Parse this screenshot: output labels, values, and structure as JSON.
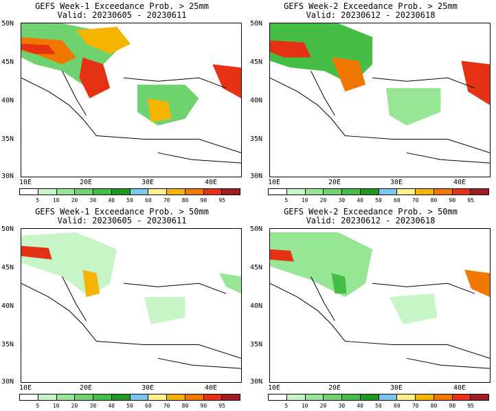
{
  "panels": [
    {
      "line1": "GEFS Week-1 Exceedance Prob. > 25mm",
      "line2": "Valid: 20230605 - 20230611"
    },
    {
      "line1": "GEFS Week-2 Exceedance Prob. > 25mm",
      "line2": "Valid: 20230612 - 20230618"
    },
    {
      "line1": "GEFS Week-1 Exceedance Prob. > 50mm",
      "line2": "Valid: 20230605 - 20230611"
    },
    {
      "line1": "GEFS Week-2 Exceedance Prob. > 50mm",
      "line2": "Valid: 20230612 - 20230618"
    }
  ],
  "lat_labels": [
    "50N",
    "45N",
    "40N",
    "35N",
    "30N"
  ],
  "lon_labels": [
    "10E",
    "20E",
    "30E",
    "40E"
  ],
  "colorbar": {
    "labels": [
      "5",
      "10",
      "20",
      "30",
      "40",
      "50",
      "60",
      "70",
      "80",
      "90",
      "95"
    ],
    "colors": [
      "#ffffff",
      "#c8f5c8",
      "#96e696",
      "#6ed26e",
      "#46be46",
      "#1e9b1e",
      "#78c8f0",
      "#fff08c",
      "#f5b400",
      "#f07800",
      "#e63214",
      "#a01e1e"
    ]
  }
}
